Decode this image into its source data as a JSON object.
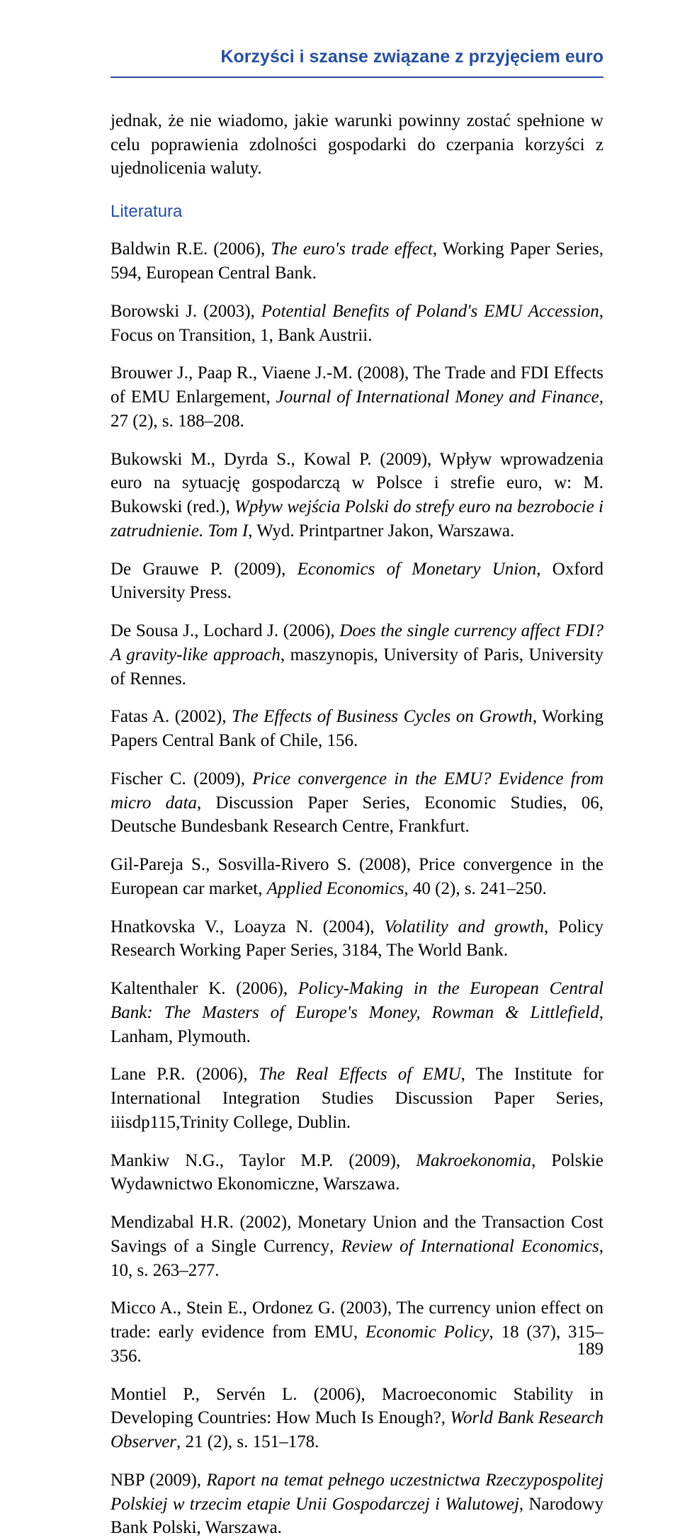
{
  "runningHead": "Korzyści i szanse związane z przyjęciem euro",
  "intro": "jednak, że nie wiadomo, jakie warunki powinny zostać spełnione w celu poprawienia zdolności gospodarki do czerpania korzyści z ujednolicenia waluty.",
  "sectionTitle": "Literatura",
  "refs": [
    {
      "html": "Baldwin R.E. (2006), <em>The euro's trade effect</em>, Working Paper Series, 594, European Central Bank."
    },
    {
      "html": "Borowski J. (2003), <em>Potential Benefits of Poland's EMU Accession</em>, Focus on Transition, 1, Bank Austrii."
    },
    {
      "html": "Brouwer J., Paap R., Viaene J.-M. (2008), The Trade and FDI Effects of EMU Enlargement, <em>Journal of International Money and Finance,</em> 27 (2), s. 188–208."
    },
    {
      "html": "Bukowski M., Dyrda S., Kowal P. (2009), Wpływ wprowadzenia euro na sytuację gospodarczą w Polsce i strefie euro, w: M. Bukowski (red.), <em>Wpływ wejścia Polski do strefy euro na bezrobocie i zatrudnienie. Tom I</em>, Wyd. Printpartner Jakon, Warszawa."
    },
    {
      "html": "De Grauwe P. (2009), <em>Economics of Monetary Union</em>, Oxford University Press."
    },
    {
      "html": "De Sousa J., Lochard J. (2006), <em>Does the single currency affect FDI? A gravity-like approach</em>, maszynopis, University of Paris, University of Rennes."
    },
    {
      "html": "Fatas A. (2002), <em>The Effects of Business Cycles on Growth</em>, Working Papers Central Bank of Chile, 156."
    },
    {
      "html": "Fischer C. (2009), <em>Price convergence in the EMU? Evidence from micro data</em>, Discussion Paper Series, Economic Studies, 06, Deutsche Bundesbank Research Centre, Frankfurt."
    },
    {
      "html": "Gil-Pareja S., Sosvilla-Rivero S. (2008), Price convergence in the European car market, <em>Applied Economics</em>, 40 (2), s. 241–250."
    },
    {
      "html": "Hnatkovska V., Loayza N. (2004), <em>Volatility and growth</em>, Policy Research Working Paper Series, 3184, The World Bank."
    },
    {
      "html": "Kaltenthaler K. (2006), <em>Policy-Making in the European Central Bank: The Masters of Europe's Money, Rowman &amp; Littlefield,</em> Lanham, Plymouth."
    },
    {
      "html": "Lane P.R. (2006), <em>The Real Effects of EMU</em>, The Institute for International Integration Studies Discussion Paper Series, iiisdp115,Trinity College, Dublin."
    },
    {
      "html": "Mankiw N.G., Taylor M.P. (2009), <em>Makroekonomia</em>, Polskie Wydawnictwo Ekonomiczne, Warszawa."
    },
    {
      "html": "Mendizabal H.R. (2002)<em>,</em> Monetary Union and the Transaction Cost Savings of a Single Currency<em>, Review of International Economics</em>, 10, s. 263–277."
    },
    {
      "html": "Micco A., Stein E., Ordonez G. (2003), The currency union effect on trade: early evidence from EMU, <em>Economic Policy</em>, 18 (37), 315–356."
    },
    {
      "html": "Montiel P., Servén L. (2006), Macroeconomic Stability in Developing Countries: How Much Is Enough?, <em>World Bank Research Observer</em>, 21 (2), s. 151–178."
    },
    {
      "html": "NBP (2009), <em>Raport na temat pełnego uczestnictwa Rzeczypospolitej Polskiej w trzecim etapie Unii Gospodarczej i Walutowej</em>, Narodowy Bank Polski, Warszawa."
    }
  ],
  "pageNumber": "189"
}
